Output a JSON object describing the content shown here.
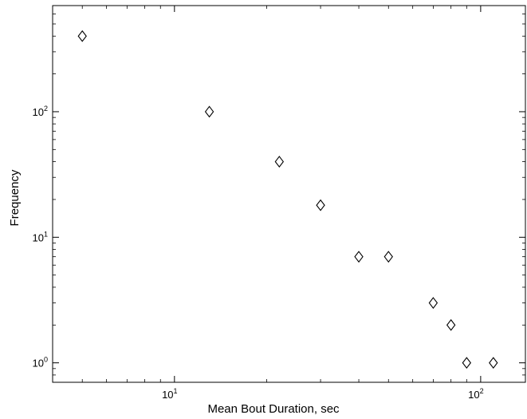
{
  "chart_data": {
    "type": "scatter",
    "title": "",
    "xlabel": "Mean Bout Duration, sec",
    "ylabel": "Frequency",
    "xscale": "log",
    "yscale": "log",
    "xlim": [
      4,
      140
    ],
    "ylim": [
      0.7,
      700
    ],
    "grid": false,
    "legend": "none",
    "marker": "diamond",
    "marker_color": "#000000",
    "x_ticks": [
      {
        "value": 10,
        "base": "10",
        "exp": "1"
      },
      {
        "value": 100,
        "base": "10",
        "exp": "2"
      }
    ],
    "y_ticks": [
      {
        "value": 1,
        "base": "10",
        "exp": "0"
      },
      {
        "value": 10,
        "base": "10",
        "exp": "1"
      },
      {
        "value": 100,
        "base": "10",
        "exp": "2"
      }
    ],
    "points": [
      {
        "x": 5,
        "y": 400
      },
      {
        "x": 13,
        "y": 100
      },
      {
        "x": 22,
        "y": 40
      },
      {
        "x": 30,
        "y": 18
      },
      {
        "x": 40,
        "y": 7
      },
      {
        "x": 50,
        "y": 7
      },
      {
        "x": 70,
        "y": 3
      },
      {
        "x": 80,
        "y": 2
      },
      {
        "x": 90,
        "y": 1
      },
      {
        "x": 110,
        "y": 1
      }
    ]
  }
}
